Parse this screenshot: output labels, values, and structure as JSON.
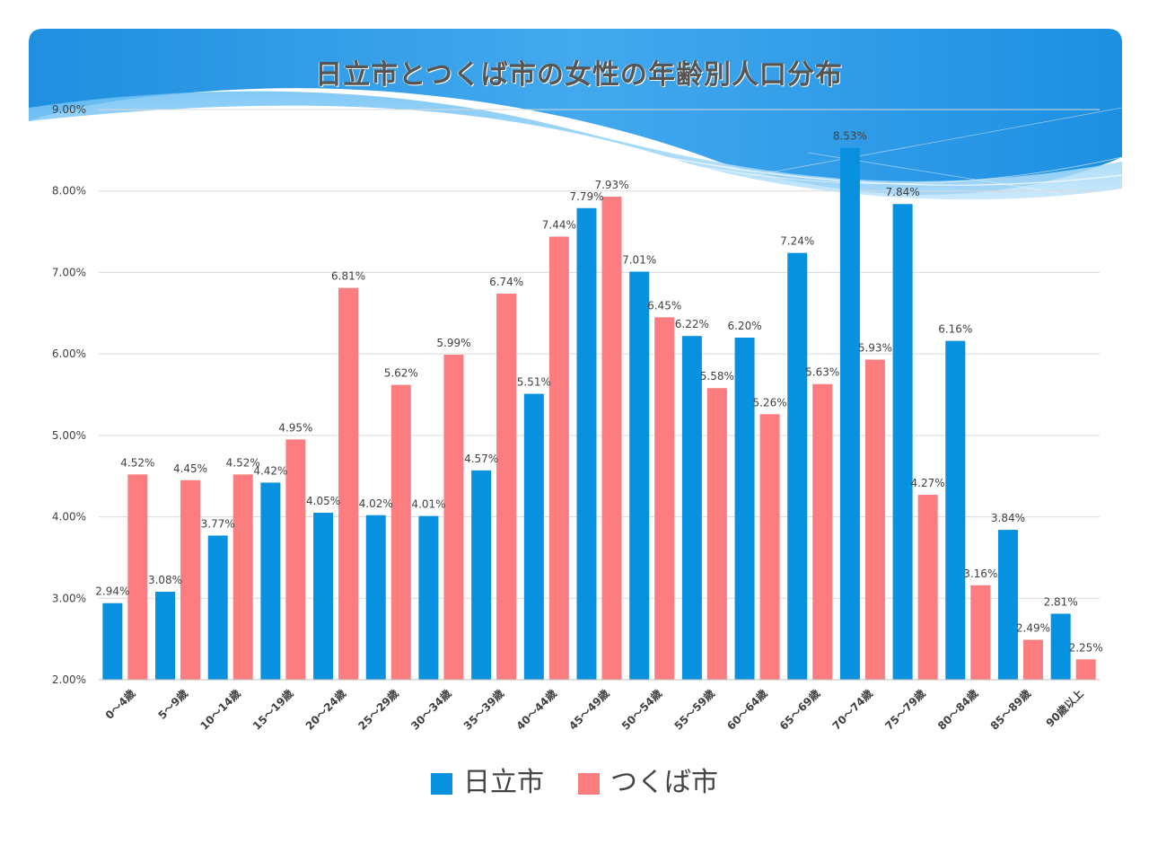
{
  "title": "日立市とつくば市の女性の年齢別人口分布",
  "colors": {
    "hitachi": "#0891df",
    "tsukuba": "#fc7d80",
    "grid": "#d9d9d9",
    "text": "#404040"
  },
  "legend": {
    "hitachi": "日立市",
    "tsukuba": "つくば市"
  },
  "chart_data": {
    "type": "bar",
    "title": "日立市とつくば市の女性の年齢別人口分布",
    "xlabel": "",
    "ylabel": "",
    "ylim": [
      2.0,
      9.0
    ],
    "yticks": [
      "2.00%",
      "3.00%",
      "4.00%",
      "5.00%",
      "6.00%",
      "7.00%",
      "8.00%",
      "9.00%"
    ],
    "grid": true,
    "legend_position": "bottom",
    "categories": [
      "0～4歳",
      "5～9歳",
      "10～14歳",
      "15～19歳",
      "20～24歳",
      "25～29歳",
      "30～34歳",
      "35～39歳",
      "40～44歳",
      "45～49歳",
      "50～54歳",
      "55～59歳",
      "60～64歳",
      "65～69歳",
      "70～74歳",
      "75～79歳",
      "80～84歳",
      "85～89歳",
      "90歳以上"
    ],
    "series": [
      {
        "name": "日立市",
        "values": [
          2.94,
          3.08,
          3.77,
          4.42,
          4.05,
          4.02,
          4.01,
          4.57,
          5.51,
          7.79,
          7.01,
          6.22,
          6.2,
          7.24,
          8.53,
          7.84,
          6.16,
          3.84,
          2.81
        ],
        "labels": [
          "2.94%",
          "3.08%",
          "3.77%",
          "4.42%",
          "4.05%",
          "4.02%",
          "4.01%",
          "4.57%",
          "5.51%",
          "7.79%",
          "7.01%",
          "6.22%",
          "6.20%",
          "7.24%",
          "8.53%",
          "7.84%",
          "6.16%",
          "3.84%",
          "2.81%"
        ]
      },
      {
        "name": "つくば市",
        "values": [
          4.52,
          4.45,
          4.52,
          4.95,
          6.81,
          5.62,
          5.99,
          6.74,
          7.44,
          7.93,
          6.45,
          5.58,
          5.26,
          5.63,
          5.93,
          4.27,
          3.16,
          2.49,
          2.25
        ],
        "labels": [
          "4.52%",
          "4.45%",
          "4.52%",
          "4.95%",
          "6.81%",
          "5.62%",
          "5.99%",
          "6.74%",
          "7.44%",
          "7.93%",
          "6.45%",
          "5.58%",
          "5.26%",
          "5.63%",
          "5.93%",
          "4.27%",
          "3.16%",
          "2.49%",
          "2.25%"
        ]
      }
    ]
  }
}
